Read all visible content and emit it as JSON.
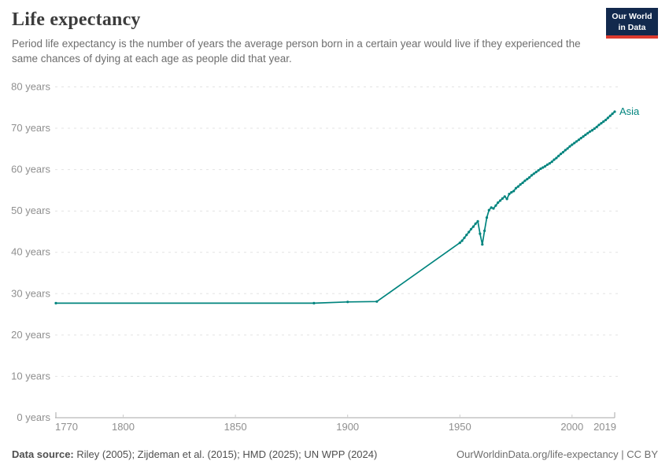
{
  "header": {
    "title": "Life expectancy",
    "subtitle": "Period life expectancy is the number of years the average person born in a certain year would live if they experienced the same chances of dying at each age as people did that year.",
    "logo": {
      "line1": "Our World",
      "line2": "in Data",
      "bg": "#12294d",
      "accent": "#dc3a2e"
    }
  },
  "chart_data": {
    "type": "line",
    "title": "Life expectancy",
    "xlabel": "",
    "ylabel": "",
    "xlim": [
      1770,
      2019
    ],
    "ylim": [
      0,
      80
    ],
    "x_ticks": [
      1770,
      1800,
      1850,
      1900,
      1950,
      2000,
      2019
    ],
    "y_ticks": [
      0,
      10,
      20,
      30,
      40,
      50,
      60,
      70,
      80
    ],
    "y_tick_suffix": " years",
    "grid": "horizontal-dashed",
    "legend_position": "end-of-line",
    "colors": {
      "grid": "#e3e3e3",
      "axis": "#a7a7a7",
      "tick": "#cccccc",
      "tick_text": "#8f8f8f"
    },
    "series": [
      {
        "name": "Asia",
        "color": "#00847E",
        "points": [
          [
            1770,
            27.7
          ],
          [
            1885,
            27.7
          ],
          [
            1900,
            28.0
          ],
          [
            1913,
            28.1
          ],
          [
            1950,
            42.3
          ],
          [
            1951,
            42.8
          ],
          [
            1952,
            43.5
          ],
          [
            1953,
            44.2
          ],
          [
            1954,
            44.9
          ],
          [
            1955,
            45.6
          ],
          [
            1956,
            46.2
          ],
          [
            1957,
            46.9
          ],
          [
            1958,
            47.5
          ],
          [
            1959,
            44.5
          ],
          [
            1960,
            41.9
          ],
          [
            1961,
            45.2
          ],
          [
            1962,
            48.4
          ],
          [
            1963,
            50.2
          ],
          [
            1964,
            50.8
          ],
          [
            1965,
            50.6
          ],
          [
            1966,
            51.3
          ],
          [
            1967,
            52.0
          ],
          [
            1968,
            52.5
          ],
          [
            1969,
            53.0
          ],
          [
            1970,
            53.5
          ],
          [
            1971,
            52.9
          ],
          [
            1972,
            54.1
          ],
          [
            1973,
            54.5
          ],
          [
            1974,
            54.8
          ],
          [
            1975,
            55.5
          ],
          [
            1976,
            55.9
          ],
          [
            1977,
            56.4
          ],
          [
            1978,
            56.8
          ],
          [
            1979,
            57.3
          ],
          [
            1980,
            57.7
          ],
          [
            1981,
            58.1
          ],
          [
            1982,
            58.6
          ],
          [
            1983,
            59.0
          ],
          [
            1984,
            59.4
          ],
          [
            1985,
            59.8
          ],
          [
            1986,
            60.2
          ],
          [
            1987,
            60.5
          ],
          [
            1988,
            60.8
          ],
          [
            1989,
            61.2
          ],
          [
            1990,
            61.5
          ],
          [
            1991,
            61.9
          ],
          [
            1992,
            62.4
          ],
          [
            1993,
            62.8
          ],
          [
            1994,
            63.3
          ],
          [
            1995,
            63.8
          ],
          [
            1996,
            64.2
          ],
          [
            1997,
            64.7
          ],
          [
            1998,
            65.1
          ],
          [
            1999,
            65.6
          ],
          [
            2000,
            66.0
          ],
          [
            2001,
            66.4
          ],
          [
            2002,
            66.8
          ],
          [
            2003,
            67.2
          ],
          [
            2004,
            67.6
          ],
          [
            2005,
            68.0
          ],
          [
            2006,
            68.4
          ],
          [
            2007,
            68.8
          ],
          [
            2008,
            69.2
          ],
          [
            2009,
            69.5
          ],
          [
            2010,
            69.9
          ],
          [
            2011,
            70.3
          ],
          [
            2012,
            70.8
          ],
          [
            2013,
            71.2
          ],
          [
            2014,
            71.6
          ],
          [
            2015,
            72.0
          ],
          [
            2016,
            72.5
          ],
          [
            2017,
            73.0
          ],
          [
            2018,
            73.5
          ],
          [
            2019,
            74.0
          ]
        ]
      }
    ]
  },
  "footer": {
    "source_label": "Data source:",
    "source_text": " Riley (2005); Zijdeman et al. (2015); HMD (2025); UN WPP (2024)",
    "link": "OurWorldinData.org/life-expectancy | CC BY"
  }
}
